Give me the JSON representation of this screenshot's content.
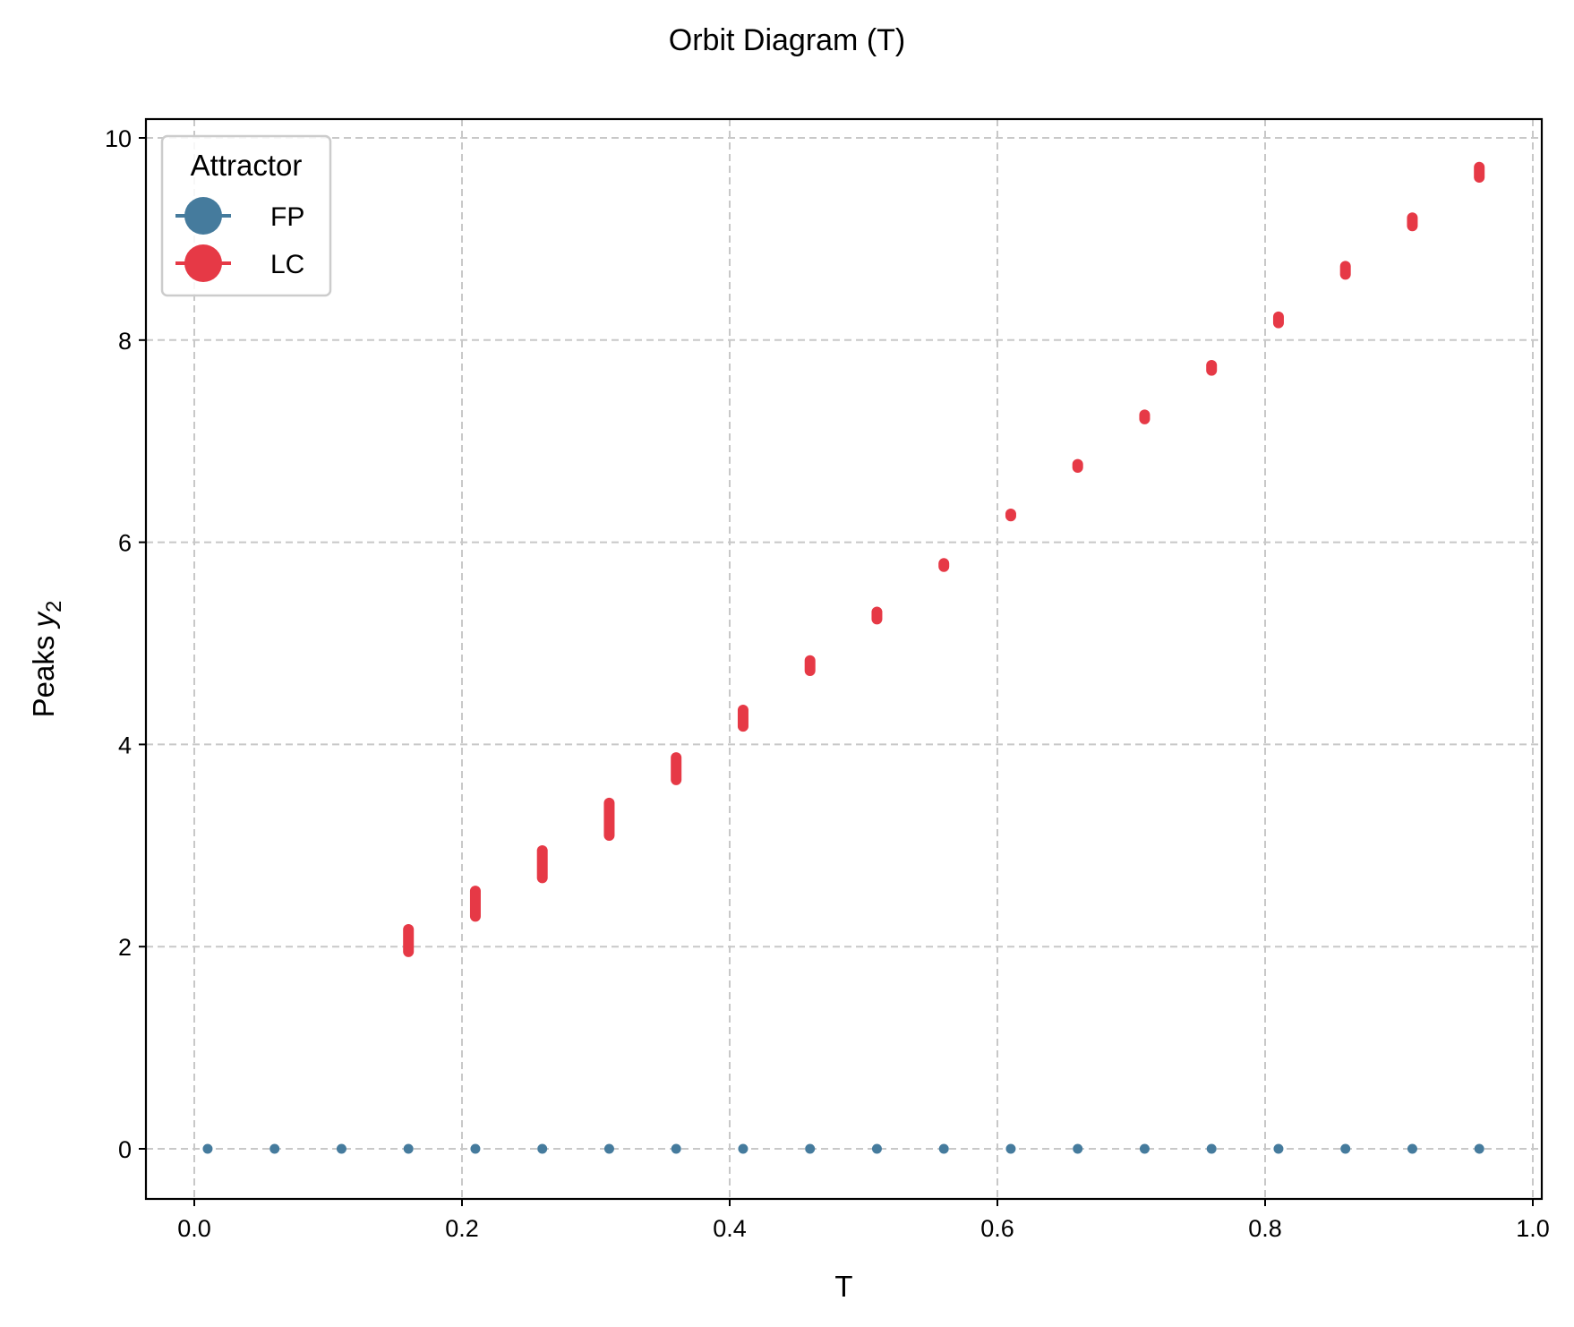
{
  "chart_data": {
    "type": "scatter",
    "title": "Orbit Diagram (T)",
    "xlabel": "T",
    "ylabel": "Peaks y_2",
    "xlim": [
      -0.04,
      1.01
    ],
    "ylim": [
      -0.48,
      10.2
    ],
    "xticks": [
      0.0,
      0.2,
      0.4,
      0.6,
      0.8,
      1.0
    ],
    "xtick_labels": [
      "0.0",
      "0.2",
      "0.4",
      "0.6",
      "0.8",
      "1.0"
    ],
    "yticks": [
      0,
      2,
      4,
      6,
      8,
      10
    ],
    "ytick_labels": [
      "0",
      "2",
      "4",
      "6",
      "8",
      "10"
    ],
    "grid": true,
    "legend": {
      "title": "Attractor",
      "position": "upper left",
      "entries": [
        "FP",
        "LC"
      ]
    },
    "series": [
      {
        "name": "FP",
        "color": "#457b9d",
        "x": [
          0.01,
          0.06,
          0.11,
          0.16,
          0.21,
          0.26,
          0.31,
          0.36,
          0.41,
          0.46,
          0.51,
          0.56,
          0.61,
          0.66,
          0.71,
          0.76,
          0.81,
          0.86,
          0.91,
          0.96
        ],
        "y": [
          0,
          0,
          0,
          0,
          0,
          0,
          0,
          0,
          0,
          0,
          0,
          0,
          0,
          0,
          0,
          0,
          0,
          0,
          0,
          0
        ]
      },
      {
        "name": "LC",
        "color": "#e63946",
        "x": [
          0.16,
          0.21,
          0.26,
          0.31,
          0.36,
          0.41,
          0.46,
          0.51,
          0.56,
          0.61,
          0.66,
          0.71,
          0.76,
          0.81,
          0.86,
          0.91,
          0.96
        ],
        "y_min": [
          1.95,
          2.3,
          2.68,
          3.1,
          3.65,
          4.18,
          4.73,
          5.24,
          5.76,
          6.26,
          6.74,
          7.22,
          7.7,
          8.17,
          8.65,
          9.13,
          9.61
        ],
        "y_max": [
          2.17,
          2.55,
          2.95,
          3.42,
          3.87,
          4.34,
          4.83,
          5.31,
          5.79,
          6.28,
          6.77,
          7.26,
          7.75,
          8.23,
          8.73,
          9.21,
          9.71
        ]
      }
    ]
  }
}
